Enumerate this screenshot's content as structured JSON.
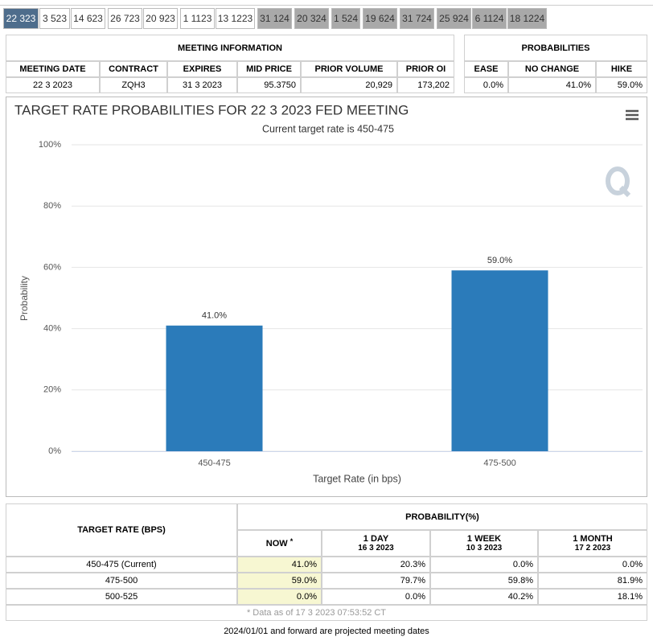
{
  "tabs": [
    {
      "label": "22 323",
      "color": "#4e6d8c"
    },
    {
      "label": "3 523",
      "color": "#ffffff"
    },
    {
      "label": "14 623",
      "color": "#ffffff"
    },
    {
      "label": "26 723",
      "color": "#ffffff"
    },
    {
      "label": "20 923",
      "color": "#ffffff"
    },
    {
      "label": "1 1123",
      "color": "#ffffff"
    },
    {
      "label": "13 1223",
      "color": "#ffffff"
    },
    {
      "label": "31 124",
      "color": "#a9a9a9"
    },
    {
      "label": "20 324",
      "color": "#a9a9a9"
    },
    {
      "label": "1 524",
      "color": "#a9a9a9"
    },
    {
      "label": "19 624",
      "color": "#a9a9a9"
    },
    {
      "label": "31 724",
      "color": "#a9a9a9"
    },
    {
      "label": "25 924",
      "color": "#a9a9a9"
    },
    {
      "label": "6 1124",
      "color": "#a9a9a9"
    },
    {
      "label": "18 1224",
      "color": "#a9a9a9"
    }
  ],
  "active_tab": 0,
  "meeting_info": {
    "title": "MEETING INFORMATION",
    "columns": [
      "MEETING DATE",
      "CONTRACT",
      "EXPIRES",
      "MID PRICE",
      "PRIOR VOLUME",
      "PRIOR OI"
    ],
    "rows": [
      [
        "22 3 2023",
        "ZQH3",
        "31 3 2023",
        "95.3750",
        "20,929",
        "173,202"
      ]
    ]
  },
  "probabilities": {
    "title": "PROBABILITIES",
    "columns": [
      "EASE",
      "NO CHANGE",
      "HIKE"
    ],
    "rows": [
      [
        "0.0%",
        "41.0%",
        "59.0%"
      ]
    ]
  },
  "chart_data": {
    "type": "bar",
    "title": "TARGET RATE PROBABILITIES FOR 22 3 2023 FED MEETING",
    "subtitle": "Current target rate is 450-475",
    "x_label": "Target Rate (in bps)",
    "y_label": "Probability",
    "categories": [
      "450-475",
      "475-500"
    ],
    "values": [
      41.0,
      59.0
    ],
    "value_labels": [
      "41.0%",
      "59.0%"
    ],
    "color": "#2b7bba",
    "ylim": [
      0,
      100
    ],
    "yticks": [
      {
        "value": 0,
        "label": "0%"
      },
      {
        "value": 20,
        "label": "20%"
      },
      {
        "value": 40,
        "label": "40%"
      },
      {
        "value": 60,
        "label": "60%"
      },
      {
        "value": 80,
        "label": "80%"
      },
      {
        "value": 100,
        "label": "100%"
      }
    ],
    "grid": true
  },
  "probability_table": {
    "row_header": "TARGET RATE (BPS)",
    "group_header": "PROBABILITY(%)",
    "columns": [
      {
        "label": "NOW",
        "note": "*"
      },
      {
        "label": "1 DAY",
        "date": "16 3 2023"
      },
      {
        "label": "1 WEEK",
        "date": "10 3 2023"
      },
      {
        "label": "1 MONTH",
        "date": "17 2 2023"
      }
    ],
    "rows": [
      [
        "450-475 (Current)",
        "41.0%",
        "20.3%",
        "0.0%",
        "0.0%"
      ],
      [
        "475-500",
        "59.0%",
        "79.7%",
        "59.8%",
        "81.9%"
      ],
      [
        "500-525",
        "0.0%",
        "0.0%",
        "40.2%",
        "18.1%"
      ]
    ],
    "footnote": "* Data as of 17 3 2023 07:53:52 CT"
  },
  "footer_note": "2024/01/01 and forward are projected meeting dates"
}
